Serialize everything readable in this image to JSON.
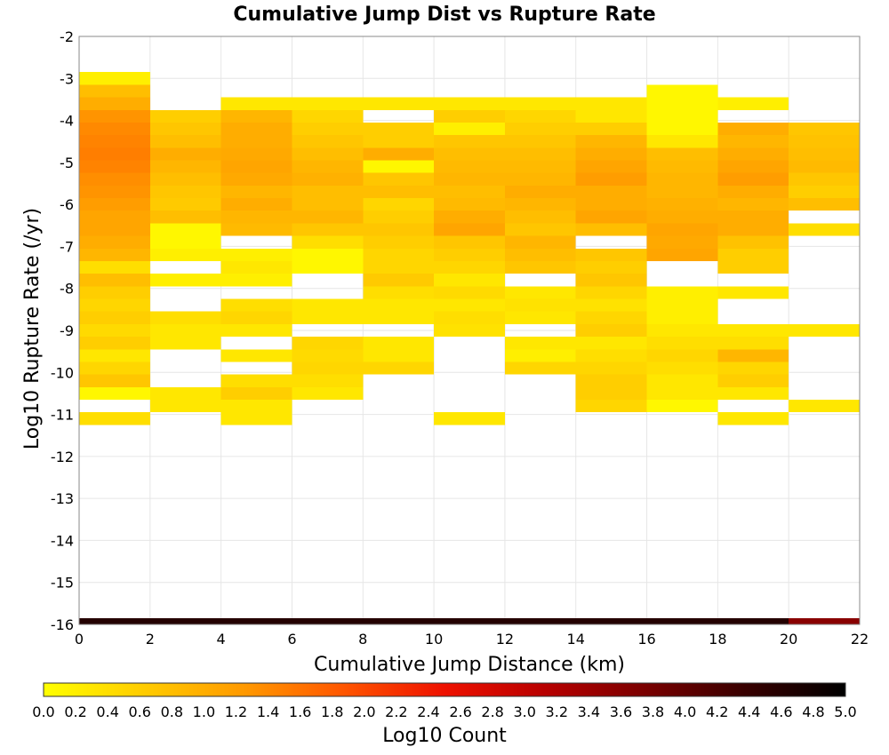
{
  "chart_data": {
    "type": "heatmap",
    "title": "Cumulative Jump Dist vs Rupture Rate",
    "xlabel": "Cumulative Jump Distance (km)",
    "ylabel": "Log10 Rupture Rate (/yr)",
    "xlim": [
      0,
      22
    ],
    "ylim": [
      -16,
      -2
    ],
    "x_ticks": [
      0,
      2,
      4,
      6,
      8,
      10,
      12,
      14,
      16,
      18,
      20,
      22
    ],
    "y_ticks": [
      -2,
      -3,
      -4,
      -5,
      -6,
      -7,
      -8,
      -9,
      -10,
      -11,
      -12,
      -13,
      -14,
      -15,
      -16
    ],
    "grid": true,
    "bin_width_x": 2,
    "bin_height_y": 0.3,
    "colorbar": {
      "label": "Log10 Count",
      "range": [
        0,
        5
      ],
      "ticks": [
        "0.0",
        "0.2",
        "0.4",
        "0.6",
        "0.8",
        "1.0",
        "1.2",
        "1.4",
        "1.6",
        "1.8",
        "2.0",
        "2.2",
        "2.4",
        "2.6",
        "2.8",
        "3.0",
        "3.2",
        "3.4",
        "3.6",
        "3.8",
        "4.0",
        "4.2",
        "4.4",
        "4.6",
        "4.8",
        "5.0"
      ],
      "stops": [
        "#ffff00",
        "#ffcc00",
        "#ff9900",
        "#ff5500",
        "#ee1100",
        "#b80000",
        "#7a0000",
        "#380000",
        "#000000"
      ]
    },
    "columns": [
      {
        "x": [
          0,
          2
        ],
        "cells": [
          [
            -3.0,
            0.2
          ],
          [
            -3.3,
            0.8
          ],
          [
            -3.6,
            1.0
          ],
          [
            -3.9,
            1.3
          ],
          [
            -4.2,
            1.4
          ],
          [
            -4.5,
            1.45
          ],
          [
            -4.8,
            1.5
          ],
          [
            -5.1,
            1.45
          ],
          [
            -5.4,
            1.35
          ],
          [
            -5.7,
            1.3
          ],
          [
            -6.0,
            1.2
          ],
          [
            -6.3,
            1.1
          ],
          [
            -6.6,
            1.1
          ],
          [
            -6.9,
            1.0
          ],
          [
            -7.2,
            0.9
          ],
          [
            -7.5,
            0.4
          ],
          [
            -7.8,
            0.8
          ],
          [
            -8.1,
            0.6
          ],
          [
            -8.4,
            0.5
          ],
          [
            -8.7,
            0.6
          ],
          [
            -9.0,
            0.45
          ],
          [
            -9.3,
            0.6
          ],
          [
            -9.6,
            0.3
          ],
          [
            -9.9,
            0.5
          ],
          [
            -10.2,
            0.7
          ],
          [
            -10.5,
            0.1
          ],
          [
            -11.1,
            0.4
          ],
          [
            -16.0,
            4.6
          ]
        ]
      },
      {
        "x": [
          2,
          4
        ],
        "cells": [
          [
            -3.9,
            0.6
          ],
          [
            -4.2,
            0.7
          ],
          [
            -4.5,
            0.8
          ],
          [
            -4.8,
            1.0
          ],
          [
            -5.1,
            0.9
          ],
          [
            -5.4,
            0.8
          ],
          [
            -5.7,
            0.7
          ],
          [
            -6.0,
            0.65
          ],
          [
            -6.3,
            0.8
          ],
          [
            -6.6,
            0.1
          ],
          [
            -6.9,
            0.1
          ],
          [
            -7.2,
            0.2
          ],
          [
            -7.8,
            0.2
          ],
          [
            -8.7,
            0.4
          ],
          [
            -9.0,
            0.3
          ],
          [
            -9.3,
            0.3
          ],
          [
            -10.5,
            0.3
          ],
          [
            -10.8,
            0.3
          ],
          [
            -16.0,
            4.6
          ]
        ]
      },
      {
        "x": [
          4,
          6
        ],
        "cells": [
          [
            -3.6,
            0.3
          ],
          [
            -3.9,
            0.9
          ],
          [
            -4.2,
            1.0
          ],
          [
            -4.5,
            1.0
          ],
          [
            -4.8,
            1.05
          ],
          [
            -5.1,
            1.1
          ],
          [
            -5.4,
            1.05
          ],
          [
            -5.7,
            0.9
          ],
          [
            -6.0,
            1.0
          ],
          [
            -6.3,
            0.9
          ],
          [
            -6.6,
            0.85
          ],
          [
            -7.2,
            0.2
          ],
          [
            -7.5,
            0.3
          ],
          [
            -7.8,
            0.2
          ],
          [
            -8.4,
            0.4
          ],
          [
            -8.7,
            0.5
          ],
          [
            -9.0,
            0.3
          ],
          [
            -9.6,
            0.3
          ],
          [
            -10.2,
            0.4
          ],
          [
            -10.5,
            0.6
          ],
          [
            -10.8,
            0.3
          ],
          [
            -11.1,
            0.3
          ],
          [
            -16.0,
            4.6
          ]
        ]
      },
      {
        "x": [
          6,
          8
        ],
        "cells": [
          [
            -3.6,
            0.3
          ],
          [
            -3.9,
            0.5
          ],
          [
            -4.2,
            0.6
          ],
          [
            -4.5,
            0.7
          ],
          [
            -4.8,
            0.8
          ],
          [
            -5.1,
            0.9
          ],
          [
            -5.4,
            0.95
          ],
          [
            -5.7,
            0.8
          ],
          [
            -6.0,
            0.8
          ],
          [
            -6.3,
            0.9
          ],
          [
            -6.6,
            0.7
          ],
          [
            -6.9,
            0.4
          ],
          [
            -7.2,
            0.1
          ],
          [
            -7.5,
            0.1
          ],
          [
            -8.4,
            0.3
          ],
          [
            -8.7,
            0.3
          ],
          [
            -9.3,
            0.5
          ],
          [
            -9.6,
            0.45
          ],
          [
            -9.9,
            0.5
          ],
          [
            -10.2,
            0.4
          ],
          [
            -10.5,
            0.3
          ],
          [
            -16.0,
            4.6
          ]
        ]
      },
      {
        "x": [
          8,
          10
        ],
        "cells": [
          [
            -3.6,
            0.3
          ],
          [
            -4.2,
            0.6
          ],
          [
            -4.5,
            0.6
          ],
          [
            -4.8,
            1.0
          ],
          [
            -5.1,
            0.1
          ],
          [
            -5.4,
            0.7
          ],
          [
            -5.7,
            0.8
          ],
          [
            -6.0,
            0.5
          ],
          [
            -6.3,
            0.6
          ],
          [
            -6.6,
            0.7
          ],
          [
            -6.9,
            0.6
          ],
          [
            -7.2,
            0.5
          ],
          [
            -7.5,
            0.5
          ],
          [
            -7.8,
            0.65
          ],
          [
            -8.1,
            0.4
          ],
          [
            -8.4,
            0.3
          ],
          [
            -8.7,
            0.3
          ],
          [
            -9.3,
            0.3
          ],
          [
            -9.6,
            0.3
          ],
          [
            -9.9,
            0.5
          ],
          [
            -16.0,
            4.6
          ]
        ]
      },
      {
        "x": [
          10,
          12
        ],
        "cells": [
          [
            -3.6,
            0.3
          ],
          [
            -3.9,
            0.6
          ],
          [
            -4.2,
            0.2
          ],
          [
            -4.5,
            0.7
          ],
          [
            -4.8,
            0.8
          ],
          [
            -5.1,
            0.85
          ],
          [
            -5.4,
            0.9
          ],
          [
            -5.7,
            0.8
          ],
          [
            -6.0,
            0.85
          ],
          [
            -6.3,
            1.0
          ],
          [
            -6.6,
            1.1
          ],
          [
            -6.9,
            0.7
          ],
          [
            -7.2,
            0.6
          ],
          [
            -7.5,
            0.5
          ],
          [
            -7.8,
            0.3
          ],
          [
            -8.1,
            0.45
          ],
          [
            -8.4,
            0.3
          ],
          [
            -8.7,
            0.4
          ],
          [
            -9.0,
            0.35
          ],
          [
            -11.1,
            0.3
          ],
          [
            -16.0,
            4.6
          ]
        ]
      },
      {
        "x": [
          12,
          14
        ],
        "cells": [
          [
            -3.6,
            0.3
          ],
          [
            -3.9,
            0.5
          ],
          [
            -4.2,
            0.6
          ],
          [
            -4.5,
            0.7
          ],
          [
            -4.8,
            0.8
          ],
          [
            -5.1,
            0.85
          ],
          [
            -5.4,
            0.9
          ],
          [
            -5.7,
            1.0
          ],
          [
            -6.0,
            0.9
          ],
          [
            -6.3,
            0.8
          ],
          [
            -6.6,
            0.7
          ],
          [
            -6.9,
            0.9
          ],
          [
            -7.2,
            0.8
          ],
          [
            -7.5,
            0.7
          ],
          [
            -8.1,
            0.3
          ],
          [
            -8.4,
            0.35
          ],
          [
            -8.7,
            0.3
          ],
          [
            -9.3,
            0.3
          ],
          [
            -9.6,
            0.2
          ],
          [
            -9.9,
            0.5
          ],
          [
            -16.0,
            4.6
          ]
        ]
      },
      {
        "x": [
          14,
          16
        ],
        "cells": [
          [
            -3.6,
            0.3
          ],
          [
            -3.9,
            0.3
          ],
          [
            -4.2,
            0.6
          ],
          [
            -4.5,
            0.9
          ],
          [
            -4.8,
            1.0
          ],
          [
            -5.1,
            1.1
          ],
          [
            -5.4,
            1.2
          ],
          [
            -5.7,
            1.0
          ],
          [
            -6.0,
            1.0
          ],
          [
            -6.3,
            1.1
          ],
          [
            -6.6,
            0.8
          ],
          [
            -7.2,
            0.7
          ],
          [
            -7.5,
            0.6
          ],
          [
            -7.8,
            0.7
          ],
          [
            -8.1,
            0.5
          ],
          [
            -8.4,
            0.35
          ],
          [
            -8.7,
            0.5
          ],
          [
            -9.0,
            0.6
          ],
          [
            -9.3,
            0.3
          ],
          [
            -9.6,
            0.4
          ],
          [
            -9.9,
            0.5
          ],
          [
            -10.2,
            0.6
          ],
          [
            -10.5,
            0.6
          ],
          [
            -10.8,
            0.5
          ],
          [
            -16.0,
            4.6
          ]
        ]
      },
      {
        "x": [
          16,
          18
        ],
        "cells": [
          [
            -3.3,
            0.1
          ],
          [
            -3.6,
            0.1
          ],
          [
            -3.9,
            0.1
          ],
          [
            -4.2,
            0.1
          ],
          [
            -4.5,
            0.3
          ],
          [
            -4.8,
            0.8
          ],
          [
            -5.1,
            0.85
          ],
          [
            -5.4,
            0.9
          ],
          [
            -5.7,
            0.9
          ],
          [
            -6.0,
            0.95
          ],
          [
            -6.3,
            1.0
          ],
          [
            -6.6,
            1.1
          ],
          [
            -6.9,
            1.05
          ],
          [
            -7.2,
            1.1
          ],
          [
            -8.1,
            0.2
          ],
          [
            -8.4,
            0.2
          ],
          [
            -8.7,
            0.2
          ],
          [
            -9.0,
            0.3
          ],
          [
            -9.3,
            0.4
          ],
          [
            -9.6,
            0.5
          ],
          [
            -9.9,
            0.4
          ],
          [
            -10.2,
            0.3
          ],
          [
            -10.5,
            0.3
          ],
          [
            -10.8,
            0.1
          ],
          [
            -16.0,
            4.6
          ]
        ]
      },
      {
        "x": [
          18,
          20
        ],
        "cells": [
          [
            -3.6,
            0.2
          ],
          [
            -4.2,
            1.0
          ],
          [
            -4.5,
            0.9
          ],
          [
            -4.8,
            1.0
          ],
          [
            -5.1,
            1.1
          ],
          [
            -5.4,
            1.2
          ],
          [
            -5.7,
            1.0
          ],
          [
            -6.0,
            0.9
          ],
          [
            -6.3,
            1.0
          ],
          [
            -6.6,
            1.0
          ],
          [
            -6.9,
            0.75
          ],
          [
            -7.2,
            0.6
          ],
          [
            -7.5,
            0.6
          ],
          [
            -8.1,
            0.3
          ],
          [
            -9.0,
            0.3
          ],
          [
            -9.3,
            0.4
          ],
          [
            -9.6,
            0.9
          ],
          [
            -9.9,
            0.5
          ],
          [
            -10.2,
            0.6
          ],
          [
            -10.5,
            0.3
          ],
          [
            -11.1,
            0.3
          ],
          [
            -16.0,
            4.6
          ]
        ]
      },
      {
        "x": [
          20,
          22
        ],
        "cells": [
          [
            -4.2,
            0.7
          ],
          [
            -4.5,
            0.75
          ],
          [
            -4.8,
            0.8
          ],
          [
            -5.1,
            0.85
          ],
          [
            -5.4,
            0.7
          ],
          [
            -5.7,
            0.6
          ],
          [
            -6.0,
            0.8
          ],
          [
            -6.6,
            0.4
          ],
          [
            -9.0,
            0.3
          ],
          [
            -10.8,
            0.3
          ],
          [
            -16.0,
            3.6
          ]
        ]
      }
    ]
  }
}
